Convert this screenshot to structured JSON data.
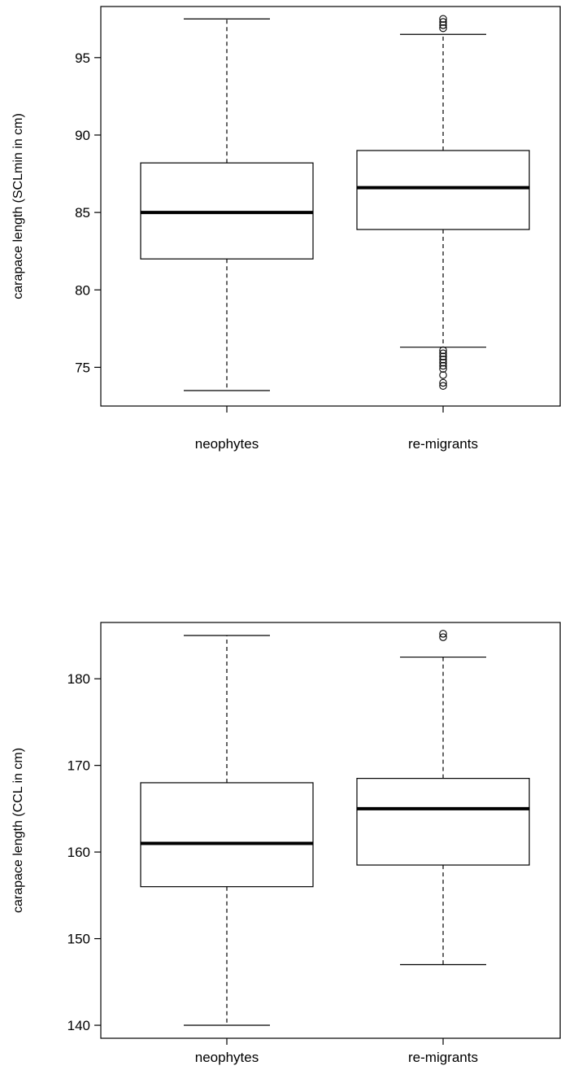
{
  "chart_data": [
    {
      "type": "boxplot",
      "ylabel": "carapace length (SCLmin in cm)",
      "ylim": [
        72.5,
        98.3
      ],
      "yticks": [
        75,
        80,
        85,
        90,
        95
      ],
      "categories": [
        "neophytes",
        "re-migrants"
      ],
      "boxes": [
        {
          "category": "neophytes",
          "min": 73.5,
          "q1": 82.0,
          "median": 85.0,
          "q3": 88.2,
          "max": 97.5,
          "outliers": []
        },
        {
          "category": "re-migrants",
          "min": 76.3,
          "q1": 83.9,
          "median": 86.6,
          "q3": 89.0,
          "max": 96.5,
          "outliers": [
            97.5,
            97.3,
            97.1,
            96.9,
            76.1,
            75.9,
            75.7,
            75.5,
            75.3,
            75.1,
            74.9,
            74.5,
            74.0,
            73.8
          ]
        }
      ],
      "grid": false
    },
    {
      "type": "boxplot",
      "ylabel": "carapace length (CCL in cm)",
      "ylim": [
        138.5,
        186.5
      ],
      "yticks": [
        140,
        150,
        160,
        170,
        180
      ],
      "categories": [
        "neophytes",
        "re-migrants"
      ],
      "boxes": [
        {
          "category": "neophytes",
          "min": 140,
          "q1": 156,
          "median": 161,
          "q3": 168,
          "max": 185,
          "outliers": []
        },
        {
          "category": "re-migrants",
          "min": 147,
          "q1": 158.5,
          "median": 165,
          "q3": 168.5,
          "max": 182.5,
          "outliers": [
            185.2,
            184.8
          ]
        }
      ],
      "grid": false
    }
  ]
}
